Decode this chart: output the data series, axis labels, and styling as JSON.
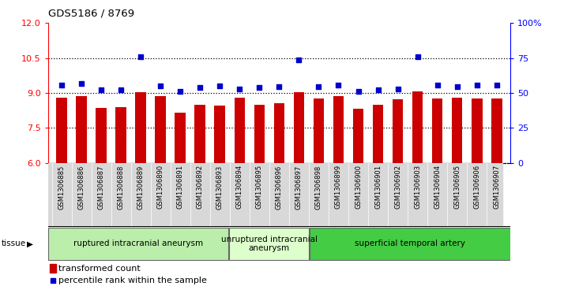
{
  "title": "GDS5186 / 8769",
  "samples": [
    "GSM1306885",
    "GSM1306886",
    "GSM1306887",
    "GSM1306888",
    "GSM1306889",
    "GSM1306890",
    "GSM1306891",
    "GSM1306892",
    "GSM1306893",
    "GSM1306894",
    "GSM1306895",
    "GSM1306896",
    "GSM1306897",
    "GSM1306898",
    "GSM1306899",
    "GSM1306900",
    "GSM1306901",
    "GSM1306902",
    "GSM1306903",
    "GSM1306904",
    "GSM1306905",
    "GSM1306906",
    "GSM1306907"
  ],
  "bar_values": [
    8.8,
    8.85,
    8.35,
    8.38,
    9.02,
    8.88,
    8.15,
    8.5,
    8.45,
    8.78,
    8.48,
    8.55,
    9.02,
    8.75,
    8.88,
    8.32,
    8.48,
    8.72,
    9.05,
    8.75,
    8.78,
    8.75,
    8.75
  ],
  "dot_values": [
    9.35,
    9.42,
    9.12,
    9.12,
    10.55,
    9.3,
    9.05,
    9.22,
    9.3,
    9.18,
    9.22,
    9.28,
    10.42,
    9.28,
    9.35,
    9.08,
    9.12,
    9.18,
    10.55,
    9.35,
    9.28,
    9.35,
    9.35
  ],
  "ylim_left": [
    6,
    12
  ],
  "ylim_right": [
    0,
    100
  ],
  "yticks_left": [
    6,
    7.5,
    9,
    10.5,
    12
  ],
  "yticks_right": [
    0,
    25,
    50,
    75,
    100
  ],
  "ytick_labels_right": [
    "0",
    "25",
    "50",
    "75",
    "100%"
  ],
  "hlines": [
    7.5,
    9.0,
    10.5
  ],
  "bar_color": "#CC0000",
  "dot_color": "#0000CC",
  "bar_width": 0.55,
  "groups": [
    {
      "label": "ruptured intracranial aneurysm",
      "start": 0,
      "end": 9,
      "color": "#bbeeaa"
    },
    {
      "label": "unruptured intracranial\naneurysm",
      "start": 9,
      "end": 13,
      "color": "#ddffcc"
    },
    {
      "label": "superficial temporal artery",
      "start": 13,
      "end": 23,
      "color": "#44cc44"
    }
  ],
  "tissue_label": "tissue",
  "legend_bar_label": "transformed count",
  "legend_dot_label": "percentile rank within the sample",
  "xtick_bg": "#d8d8d8"
}
